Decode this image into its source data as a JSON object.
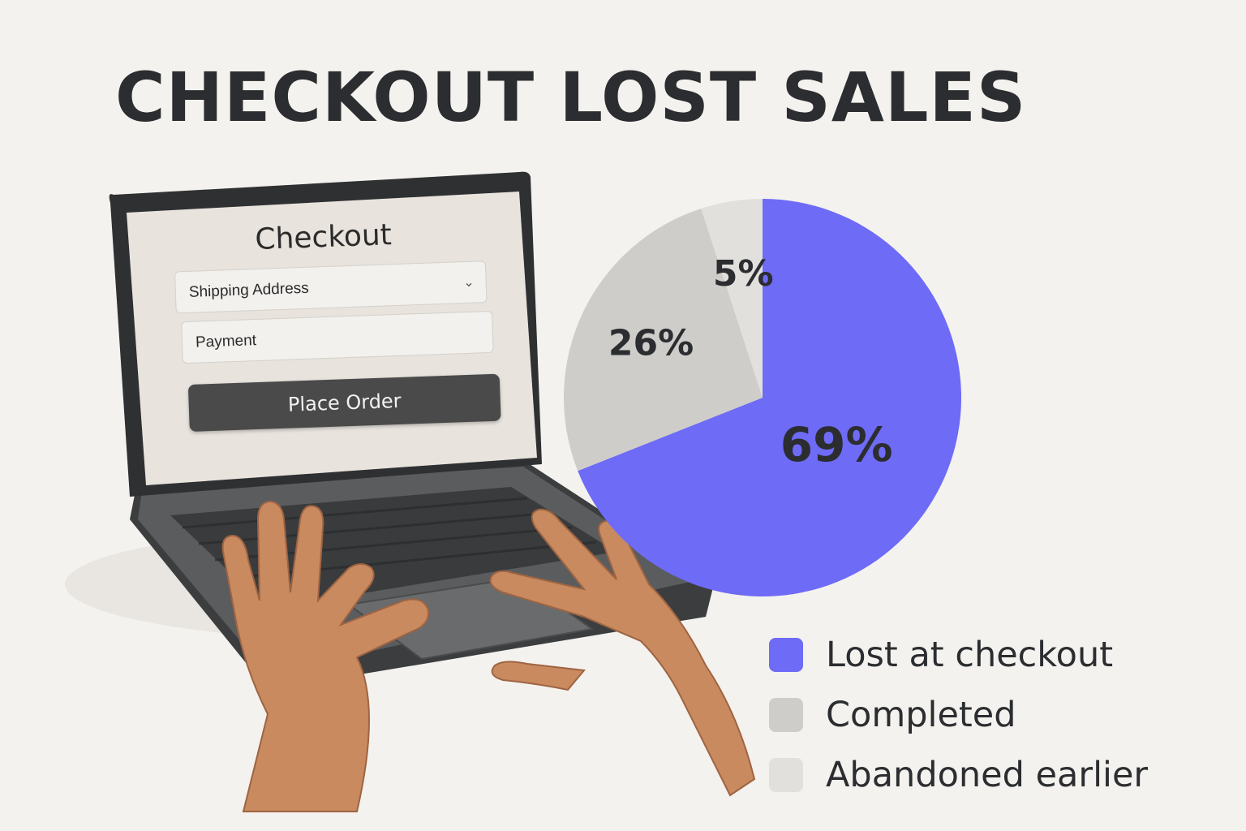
{
  "title": "CHECKOUT LOST SALES",
  "checkout_ui": {
    "heading": "Checkout",
    "shipping_field": "Shipping Address",
    "payment_field": "Payment",
    "place_order_button": "Place Order"
  },
  "colors": {
    "lost": "#6e6bf6",
    "completed": "#cfcdca",
    "abandoned": "#e2e0dc",
    "text": "#2b2d30",
    "background": "#f4f2ee"
  },
  "chart_data": {
    "type": "pie",
    "title": "CHECKOUT LOST SALES",
    "legend_position": "bottom-right",
    "slices": [
      {
        "label": "Lost at checkout",
        "value": 69,
        "display": "69%",
        "color": "#6e6bf6"
      },
      {
        "label": "Completed",
        "value": 26,
        "display": "26%",
        "color": "#cfcdca"
      },
      {
        "label": "Abandoned earlier",
        "value": 5,
        "display": "5%",
        "color": "#e2e0dc"
      }
    ]
  },
  "legend": [
    {
      "label": "Lost at checkout",
      "color": "#6e6bf6"
    },
    {
      "label": "Completed",
      "color": "#cfcdca"
    },
    {
      "label": "Abandoned earlier",
      "color": "#e2e0dc"
    }
  ]
}
